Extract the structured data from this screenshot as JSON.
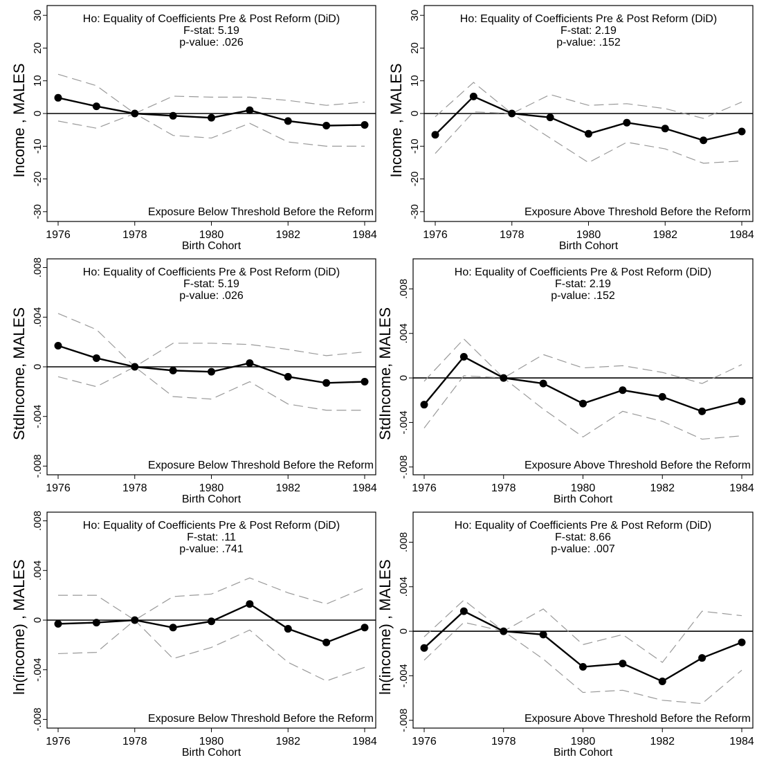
{
  "colors": {
    "coef": "#000000",
    "ci": "#999999",
    "zero": "#000000",
    "frame": "#000000"
  },
  "chart_data": [
    {
      "type": "line",
      "ylabel": "Income , MALES",
      "xlabel": "Birth Cohort",
      "ylim": [
        -33,
        33
      ],
      "yticks": [
        -30,
        -20,
        -10,
        0,
        10,
        20,
        30
      ],
      "ytick_labels": [
        "-30",
        "-20",
        "-10",
        "0",
        "10",
        "20",
        "30"
      ],
      "x": [
        1976,
        1977,
        1978,
        1979,
        1980,
        1981,
        1982,
        1983,
        1984
      ],
      "xticks": [
        1976,
        1978,
        1980,
        1982,
        1984
      ],
      "xtick_labels": [
        "1976",
        "1978",
        "1980",
        "1982",
        "1984"
      ],
      "series": [
        {
          "role": "coef",
          "values": [
            4.8,
            2.2,
            0,
            -0.7,
            -1.3,
            1.0,
            -2.3,
            -3.7,
            -3.5
          ]
        },
        {
          "role": "ci_upper",
          "values": [
            12,
            8.5,
            0,
            5.3,
            5,
            5,
            4,
            2.5,
            3.5
          ]
        },
        {
          "role": "ci_lower",
          "values": [
            -2.3,
            -4.5,
            0,
            -6.7,
            -7.5,
            -3,
            -8.7,
            -10,
            -10
          ]
        }
      ],
      "annotation": [
        "Ho: Equality of Coefficients Pre & Post Reform (DiD)",
        "F-stat: 5.19",
        "p-value: .026"
      ],
      "footer": "Exposure Below Threshold Before the Reform"
    },
    {
      "type": "line",
      "ylabel": "Income , MALES",
      "xlabel": "Birth Cohort",
      "ylim": [
        -33,
        33
      ],
      "yticks": [
        -30,
        -20,
        -10,
        0,
        10,
        20,
        30
      ],
      "ytick_labels": [
        "-30",
        "-20",
        "-10",
        "0",
        "10",
        "20",
        "30"
      ],
      "x": [
        1976,
        1977,
        1978,
        1979,
        1980,
        1981,
        1982,
        1983,
        1984
      ],
      "xticks": [
        1976,
        1978,
        1980,
        1982,
        1984
      ],
      "xtick_labels": [
        "1976",
        "1978",
        "1980",
        "1982",
        "1984"
      ],
      "series": [
        {
          "role": "coef",
          "values": [
            -6.5,
            5.2,
            0,
            -1.2,
            -6.2,
            -2.8,
            -4.6,
            -8.2,
            -5.5
          ]
        },
        {
          "role": "ci_upper",
          "values": [
            -1,
            9.5,
            0,
            5.8,
            2.5,
            3,
            1.5,
            -1.5,
            3.5
          ]
        },
        {
          "role": "ci_lower",
          "values": [
            -12.2,
            0.5,
            0,
            -7.5,
            -15,
            -8.8,
            -10.8,
            -15.2,
            -14.5
          ]
        }
      ],
      "annotation": [
        "Ho: Equality of Coefficients Pre & Post Reform (DiD)",
        "F-stat: 2.19",
        "p-value: .152"
      ],
      "footer": "Exposure Above Threshold Before the Reform"
    },
    {
      "type": "line",
      "ylabel": "StdIncome, MALES",
      "xlabel": "Birth Cohort",
      "ylim": [
        -0.0087,
        0.0087
      ],
      "yticks": [
        -0.008,
        -0.004,
        0,
        0.004,
        0.008
      ],
      "ytick_labels": [
        "-.008",
        "-.004",
        "0",
        ".004",
        ".008"
      ],
      "x": [
        1976,
        1977,
        1978,
        1979,
        1980,
        1981,
        1982,
        1983,
        1984
      ],
      "xticks": [
        1976,
        1978,
        1980,
        1982,
        1984
      ],
      "xtick_labels": [
        "1976",
        "1978",
        "1980",
        "1982",
        "1984"
      ],
      "series": [
        {
          "role": "coef",
          "values": [
            0.0017,
            0.0007,
            0,
            -0.0003,
            -0.0004,
            0.0003,
            -0.0008,
            -0.0013,
            -0.0012
          ]
        },
        {
          "role": "ci_upper",
          "values": [
            0.0043,
            0.003,
            0,
            0.0019,
            0.0019,
            0.0018,
            0.0014,
            0.0009,
            0.0012
          ]
        },
        {
          "role": "ci_lower",
          "values": [
            -0.0008,
            -0.0016,
            0,
            -0.0024,
            -0.0026,
            -0.0012,
            -0.003,
            -0.0035,
            -0.0035
          ]
        }
      ],
      "annotation": [
        "Ho: Equality of Coefficients Pre & Post Reform (DiD)",
        "F-stat: 5.19",
        "p-value: .026"
      ],
      "footer": "Exposure Below Threshold Before the Reform"
    },
    {
      "type": "line",
      "ylabel": "StdIncome, MALES",
      "xlabel": "Birth Cohort",
      "ylim": [
        -0.0087,
        0.0107
      ],
      "yticks": [
        -0.008,
        -0.004,
        0,
        0.004,
        0.008
      ],
      "ytick_labels": [
        "-.008",
        "-.004",
        "0",
        ".004",
        ".008"
      ],
      "x": [
        1976,
        1977,
        1978,
        1979,
        1980,
        1981,
        1982,
        1983,
        1984
      ],
      "xticks": [
        1976,
        1978,
        1980,
        1982,
        1984
      ],
      "xtick_labels": [
        "1976",
        "1978",
        "1980",
        "1982",
        "1984"
      ],
      "series": [
        {
          "role": "coef",
          "values": [
            -0.0024,
            0.0019,
            0,
            -0.0005,
            -0.0023,
            -0.0011,
            -0.0017,
            -0.003,
            -0.0021
          ]
        },
        {
          "role": "ci_upper",
          "values": [
            -0.0003,
            0.0035,
            0,
            0.0021,
            0.0009,
            0.0011,
            0.0005,
            -0.0005,
            0.0012
          ]
        },
        {
          "role": "ci_lower",
          "values": [
            -0.0045,
            0.0002,
            0,
            -0.0028,
            -0.0053,
            -0.003,
            -0.0039,
            -0.0055,
            -0.0052
          ]
        }
      ],
      "annotation": [
        "Ho: Equality of Coefficients Pre & Post Reform (DiD)",
        "F-stat: 2.19",
        "p-value: .152"
      ],
      "footer": "Exposure Above Threshold Before the Reform"
    },
    {
      "type": "line",
      "ylabel": "ln(income) , MALES",
      "xlabel": "Birth Cohort",
      "ylim": [
        -0.0087,
        0.0087
      ],
      "yticks": [
        -0.008,
        -0.004,
        0,
        0.004,
        0.008
      ],
      "ytick_labels": [
        "-.008",
        "-.004",
        "0",
        ".004",
        ".008"
      ],
      "x": [
        1976,
        1977,
        1978,
        1979,
        1980,
        1981,
        1982,
        1983,
        1984
      ],
      "xticks": [
        1976,
        1978,
        1980,
        1982,
        1984
      ],
      "xtick_labels": [
        "1976",
        "1978",
        "1980",
        "1982",
        "1984"
      ],
      "series": [
        {
          "role": "coef",
          "values": [
            -0.0003,
            -0.0002,
            0,
            -0.0006,
            -0.0001,
            0.0013,
            -0.0007,
            -0.0018,
            -0.0006
          ]
        },
        {
          "role": "ci_upper",
          "values": [
            0.002,
            0.002,
            0,
            0.0019,
            0.0021,
            0.0034,
            0.0022,
            0.0013,
            0.0026
          ]
        },
        {
          "role": "ci_lower",
          "values": [
            -0.0027,
            -0.0026,
            0,
            -0.0031,
            -0.0022,
            -0.0008,
            -0.0034,
            -0.0049,
            -0.0038
          ]
        }
      ],
      "annotation": [
        "Ho: Equality of Coefficients Pre & Post Reform (DiD)",
        "F-stat: .11",
        "p-value: .741"
      ],
      "footer": "Exposure Below Threshold Before the Reform"
    },
    {
      "type": "line",
      "ylabel": "ln(income) , MALES",
      "xlabel": "Birth Cohort",
      "ylim": [
        -0.0087,
        0.0107
      ],
      "yticks": [
        -0.008,
        -0.004,
        0,
        0.004,
        0.008
      ],
      "ytick_labels": [
        "-.008",
        "-.004",
        "0",
        ".004",
        ".008"
      ],
      "x": [
        1976,
        1977,
        1978,
        1979,
        1980,
        1981,
        1982,
        1983,
        1984
      ],
      "xticks": [
        1976,
        1978,
        1980,
        1982,
        1984
      ],
      "xtick_labels": [
        "1976",
        "1978",
        "1980",
        "1982",
        "1984"
      ],
      "series": [
        {
          "role": "coef",
          "values": [
            -0.0015,
            0.0018,
            0,
            -0.0003,
            -0.0032,
            -0.0029,
            -0.0045,
            -0.0024,
            -0.001
          ]
        },
        {
          "role": "ci_upper",
          "values": [
            -0.0005,
            0.0028,
            0,
            0.002,
            -0.0012,
            -0.0003,
            -0.0028,
            0.0018,
            0.0014
          ]
        },
        {
          "role": "ci_lower",
          "values": [
            -0.0026,
            0.0008,
            0,
            -0.0025,
            -0.0055,
            -0.0053,
            -0.0062,
            -0.0065,
            -0.0035
          ]
        }
      ],
      "annotation": [
        "Ho: Equality of Coefficients Pre & Post Reform (DiD)",
        "F-stat: 8.66",
        "p-value: .007"
      ],
      "footer": "Exposure Above Threshold Before the Reform"
    }
  ]
}
